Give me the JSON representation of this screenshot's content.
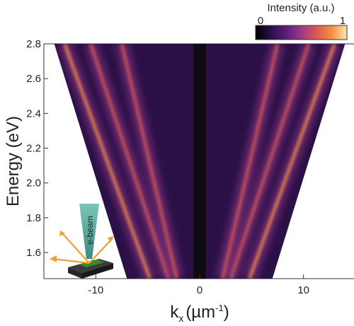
{
  "chart_data": {
    "type": "heatmap",
    "xlabel_main": "k",
    "xlabel_sub": "x",
    "xlabel_unit": "(µm",
    "xlabel_exp": "-1",
    "xlabel_close": ")",
    "ylabel": "Energy (eV)",
    "xlim": [
      -15,
      15
    ],
    "ylim": [
      1.45,
      2.8
    ],
    "x_ticks": [
      -10,
      0,
      10
    ],
    "x_tick_labels": [
      "-10",
      "0",
      "10"
    ],
    "y_ticks": [
      1.6,
      1.8,
      2.0,
      2.2,
      2.4,
      2.6,
      2.8
    ],
    "y_tick_labels": [
      "1.6",
      "1.8",
      "2.0",
      "2.2",
      "2.4",
      "2.6",
      "2.8"
    ],
    "colorbar": {
      "label": "Intensity (a.u.)",
      "min_label": "0",
      "max_label": "1",
      "colors": [
        "#000000",
        "#2a0f4a",
        "#5a1f78",
        "#9a3a8a",
        "#d85a50",
        "#f59040",
        "#ffe6b0"
      ]
    },
    "data_region": {
      "k_edge_bottom": 7.0,
      "k_edge_top": 14.0,
      "masked_k_range": [
        -0.6,
        0.6
      ]
    },
    "bands": [
      {
        "k_at_1_45": 3.0,
        "k_at_2_8": 10.5
      },
      {
        "k_at_1_45": 4.8,
        "k_at_2_8": 13.0
      },
      {
        "k_at_1_45": 2.2,
        "k_at_2_8": 7.5
      }
    ],
    "inset": {
      "label": "e-beam",
      "beam_color": "#5aa59a",
      "sample_color": "#3a8a2a",
      "arrow_color": "#f0a030"
    }
  }
}
